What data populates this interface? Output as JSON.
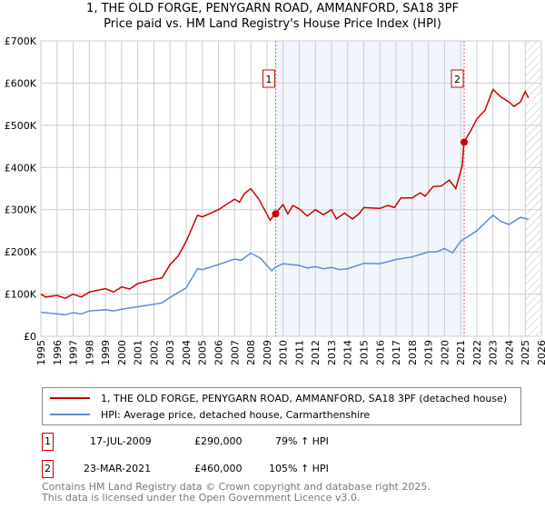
{
  "chart_data": {
    "type": "line",
    "title": "1, THE OLD FORGE, PENYGARN ROAD, AMMANFORD, SA18 3PF",
    "subtitle": "Price paid vs. HM Land Registry's House Price Index (HPI)",
    "ylim": [
      0,
      700000
    ],
    "xlim": [
      1995,
      2026
    ],
    "yticks": [
      {
        "v": 0,
        "l": "£0"
      },
      {
        "v": 100000,
        "l": "£100K"
      },
      {
        "v": 200000,
        "l": "£200K"
      },
      {
        "v": 300000,
        "l": "£300K"
      },
      {
        "v": 400000,
        "l": "£400K"
      },
      {
        "v": 500000,
        "l": "£500K"
      },
      {
        "v": 600000,
        "l": "£600K"
      },
      {
        "v": 700000,
        "l": "£700K"
      }
    ],
    "xticks": [
      "1995",
      "1996",
      "1997",
      "1998",
      "1999",
      "2000",
      "2001",
      "2002",
      "2003",
      "2004",
      "2005",
      "2006",
      "2007",
      "2008",
      "2009",
      "2010",
      "2011",
      "2012",
      "2013",
      "2014",
      "2015",
      "2016",
      "2017",
      "2018",
      "2019",
      "2020",
      "2021",
      "2022",
      "2023",
      "2024",
      "2025",
      "2026"
    ],
    "series": [
      {
        "name": "1, THE OLD FORGE, PENYGARN ROAD, AMMANFORD, SA18 3PF (detached house)",
        "color": "#cc0000",
        "points": [
          [
            1995,
            100000
          ],
          [
            1995.3,
            93000
          ],
          [
            1996,
            97000
          ],
          [
            1996.5,
            90000
          ],
          [
            1997,
            100000
          ],
          [
            1997.5,
            93000
          ],
          [
            1998,
            105000
          ],
          [
            1999,
            113000
          ],
          [
            1999.5,
            105000
          ],
          [
            2000,
            117000
          ],
          [
            2000.5,
            112000
          ],
          [
            2001,
            125000
          ],
          [
            2002,
            135000
          ],
          [
            2002.5,
            138000
          ],
          [
            2003,
            170000
          ],
          [
            2003.5,
            190000
          ],
          [
            2004,
            225000
          ],
          [
            2004.7,
            287000
          ],
          [
            2005,
            283000
          ],
          [
            2006,
            300000
          ],
          [
            2007,
            325000
          ],
          [
            2007.3,
            318000
          ],
          [
            2007.6,
            338000
          ],
          [
            2008,
            350000
          ],
          [
            2008.5,
            325000
          ],
          [
            2009.2,
            275000
          ],
          [
            2009.5,
            290000
          ],
          [
            2010,
            312000
          ],
          [
            2010.3,
            290000
          ],
          [
            2010.6,
            310000
          ],
          [
            2011,
            302000
          ],
          [
            2011.5,
            285000
          ],
          [
            2012,
            300000
          ],
          [
            2012.5,
            288000
          ],
          [
            2013,
            300000
          ],
          [
            2013.3,
            278000
          ],
          [
            2013.8,
            292000
          ],
          [
            2014.3,
            278000
          ],
          [
            2014.7,
            290000
          ],
          [
            2015,
            305000
          ],
          [
            2016,
            303000
          ],
          [
            2016.5,
            310000
          ],
          [
            2016.9,
            305000
          ],
          [
            2017.3,
            328000
          ],
          [
            2018,
            328000
          ],
          [
            2018.5,
            340000
          ],
          [
            2018.8,
            332000
          ],
          [
            2019.3,
            355000
          ],
          [
            2019.8,
            356000
          ],
          [
            2020.3,
            370000
          ],
          [
            2020.7,
            350000
          ],
          [
            2021.1,
            405000
          ],
          [
            2021.2,
            460000
          ],
          [
            2021.6,
            485000
          ],
          [
            2022,
            515000
          ],
          [
            2022.5,
            535000
          ],
          [
            2023,
            585000
          ],
          [
            2023.5,
            567000
          ],
          [
            2024,
            555000
          ],
          [
            2024.3,
            545000
          ],
          [
            2024.7,
            555000
          ],
          [
            2025,
            580000
          ],
          [
            2025.2,
            565000
          ]
        ]
      },
      {
        "name": "HPI: Average price, detached house, Carmarthenshire",
        "color": "#5b8dd6",
        "points": [
          [
            1995,
            57000
          ],
          [
            1996,
            53000
          ],
          [
            1996.5,
            51000
          ],
          [
            1997,
            56000
          ],
          [
            1997.5,
            53000
          ],
          [
            1998,
            60000
          ],
          [
            1999,
            63000
          ],
          [
            1999.5,
            60000
          ],
          [
            2000,
            64000
          ],
          [
            2001,
            70000
          ],
          [
            2002,
            76000
          ],
          [
            2002.5,
            79000
          ],
          [
            2003,
            92000
          ],
          [
            2004,
            115000
          ],
          [
            2004.7,
            160000
          ],
          [
            2005,
            158000
          ],
          [
            2006,
            170000
          ],
          [
            2007,
            183000
          ],
          [
            2007.4,
            180000
          ],
          [
            2008,
            197000
          ],
          [
            2008.6,
            185000
          ],
          [
            2009.3,
            155000
          ],
          [
            2009.5,
            163000
          ],
          [
            2010,
            172000
          ],
          [
            2011,
            168000
          ],
          [
            2011.5,
            162000
          ],
          [
            2012,
            165000
          ],
          [
            2012.5,
            160000
          ],
          [
            2013,
            163000
          ],
          [
            2013.5,
            158000
          ],
          [
            2014,
            160000
          ],
          [
            2015,
            173000
          ],
          [
            2016,
            172000
          ],
          [
            2017,
            182000
          ],
          [
            2018,
            188000
          ],
          [
            2019,
            200000
          ],
          [
            2019.5,
            200000
          ],
          [
            2020,
            208000
          ],
          [
            2020.5,
            198000
          ],
          [
            2021,
            225000
          ],
          [
            2022,
            250000
          ],
          [
            2023,
            287000
          ],
          [
            2023.5,
            272000
          ],
          [
            2024,
            265000
          ],
          [
            2024.7,
            282000
          ],
          [
            2025.2,
            277000
          ]
        ]
      }
    ],
    "sales": [
      {
        "label": "1",
        "x": 2009.54,
        "y": 290000
      },
      {
        "label": "2",
        "x": 2021.22,
        "y": 460000
      }
    ],
    "forecast_hatch_from": 2025.0
  },
  "legend": [
    {
      "label": "1, THE OLD FORGE, PENYGARN ROAD, AMMANFORD, SA18 3PF (detached house)",
      "color": "#cc0000"
    },
    {
      "label": "HPI: Average price, detached house, Carmarthenshire",
      "color": "#5b8dd6"
    }
  ],
  "transactions": [
    {
      "num": "1",
      "date": "17-JUL-2009",
      "price": "£290,000",
      "hpi": "79% ↑ HPI"
    },
    {
      "num": "2",
      "date": "23-MAR-2021",
      "price": "£460,000",
      "hpi": "105% ↑ HPI"
    }
  ],
  "footer": {
    "line1": "Contains HM Land Registry data © Crown copyright and database right 2025.",
    "line2": "This data is licensed under the Open Government Licence v3.0."
  }
}
